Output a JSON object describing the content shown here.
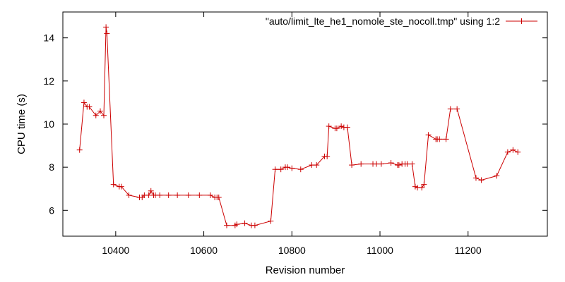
{
  "chart_data": {
    "type": "line",
    "xlabel": "Revision number",
    "ylabel": "CPU time (s)",
    "xlim": [
      10280,
      11380
    ],
    "ylim": [
      4.8,
      15.2
    ],
    "xticks": [
      10400,
      10600,
      10800,
      11000,
      11200
    ],
    "yticks": [
      6,
      8,
      10,
      12,
      14
    ],
    "legend_position": "top-right",
    "grid": false,
    "color": "#cc0000",
    "series": [
      {
        "name": "\"auto/limit_lte_he1_nomole_ste_nocoll.tmp\" using 1:2",
        "x": [
          10318,
          10328,
          10335,
          10340,
          10355,
          10365,
          10373,
          10378,
          10380,
          10395,
          10408,
          10413,
          10430,
          10454,
          10460,
          10465,
          10475,
          10480,
          10486,
          10490,
          10500,
          10520,
          10540,
          10565,
          10590,
          10615,
          10625,
          10630,
          10634,
          10652,
          10671,
          10675,
          10693,
          10708,
          10716,
          10752,
          10762,
          10775,
          10785,
          10790,
          10800,
          10820,
          10845,
          10856,
          10874,
          10880,
          10884,
          10898,
          10902,
          10912,
          10918,
          10926,
          10936,
          10957,
          10984,
          10992,
          11003,
          11025,
          11040,
          11043,
          11050,
          11057,
          11062,
          11073,
          11080,
          11085,
          11095,
          11100,
          11110,
          11127,
          11130,
          11135,
          11150,
          11160,
          11175,
          11218,
          11230,
          11265,
          11290,
          11302,
          11313
        ],
        "y": [
          8.8,
          11.0,
          10.8,
          10.8,
          10.4,
          10.6,
          10.4,
          14.5,
          14.2,
          7.2,
          7.1,
          7.1,
          6.7,
          6.6,
          6.6,
          6.7,
          6.7,
          6.9,
          6.7,
          6.7,
          6.7,
          6.7,
          6.7,
          6.7,
          6.7,
          6.7,
          6.6,
          6.6,
          6.6,
          5.3,
          5.3,
          5.35,
          5.4,
          5.3,
          5.3,
          5.5,
          7.9,
          7.9,
          8.0,
          8.0,
          7.95,
          7.9,
          8.1,
          8.1,
          8.5,
          8.5,
          9.9,
          9.8,
          9.8,
          9.9,
          9.85,
          9.85,
          8.1,
          8.15,
          8.15,
          8.15,
          8.15,
          8.2,
          8.1,
          8.1,
          8.15,
          8.15,
          8.15,
          8.15,
          7.1,
          7.05,
          7.05,
          7.2,
          9.5,
          9.3,
          9.3,
          9.3,
          9.3,
          10.7,
          10.7,
          7.5,
          7.4,
          7.6,
          8.7,
          8.8,
          8.7
        ]
      }
    ]
  }
}
